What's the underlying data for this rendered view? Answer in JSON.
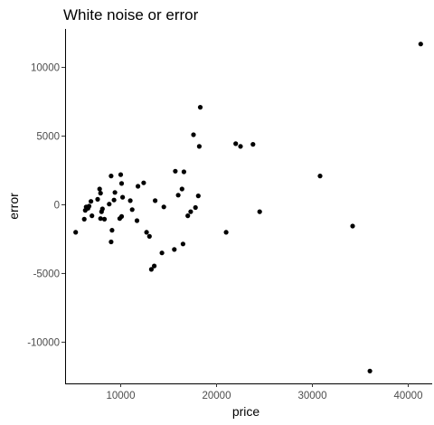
{
  "chart_data": {
    "type": "scatter",
    "title": "White noise or error",
    "xlabel": "price",
    "ylabel": "error",
    "xlim": [
      4200,
      42500
    ],
    "ylim": [
      -13000,
      12800
    ],
    "xticks": [
      10000,
      20000,
      30000,
      40000
    ],
    "xtick_labels": [
      "10000",
      "20000",
      "30000",
      "40000"
    ],
    "yticks": [
      -10000,
      -5000,
      0,
      5000,
      10000
    ],
    "ytick_labels": [
      "-10000",
      "-5000",
      "0",
      "5000",
      "10000"
    ],
    "grid": false,
    "point_color": "#000000",
    "points": [
      {
        "x": 5300,
        "y": -2000
      },
      {
        "x": 6200,
        "y": -1050
      },
      {
        "x": 6300,
        "y": -400
      },
      {
        "x": 6400,
        "y": -150
      },
      {
        "x": 6600,
        "y": -250
      },
      {
        "x": 6700,
        "y": -100
      },
      {
        "x": 6900,
        "y": 250
      },
      {
        "x": 7000,
        "y": -800
      },
      {
        "x": 7600,
        "y": 400
      },
      {
        "x": 7800,
        "y": 1150
      },
      {
        "x": 7900,
        "y": 850
      },
      {
        "x": 7900,
        "y": -1000
      },
      {
        "x": 8000,
        "y": -500
      },
      {
        "x": 8100,
        "y": -300
      },
      {
        "x": 8300,
        "y": -1050
      },
      {
        "x": 8800,
        "y": 50
      },
      {
        "x": 9000,
        "y": 2100
      },
      {
        "x": 9000,
        "y": -2700
      },
      {
        "x": 9100,
        "y": -1850
      },
      {
        "x": 9300,
        "y": 350
      },
      {
        "x": 9400,
        "y": 900
      },
      {
        "x": 9900,
        "y": -1000
      },
      {
        "x": 10000,
        "y": 2200
      },
      {
        "x": 10100,
        "y": 1550
      },
      {
        "x": 10100,
        "y": -850
      },
      {
        "x": 10200,
        "y": 550
      },
      {
        "x": 11000,
        "y": 300
      },
      {
        "x": 11200,
        "y": -350
      },
      {
        "x": 11700,
        "y": -1150
      },
      {
        "x": 11800,
        "y": 1350
      },
      {
        "x": 12400,
        "y": 1600
      },
      {
        "x": 12700,
        "y": -2000
      },
      {
        "x": 13000,
        "y": -2300
      },
      {
        "x": 13200,
        "y": -4700
      },
      {
        "x": 13500,
        "y": -4450
      },
      {
        "x": 13600,
        "y": 300
      },
      {
        "x": 14300,
        "y": -3500
      },
      {
        "x": 14500,
        "y": -150
      },
      {
        "x": 15600,
        "y": -3250
      },
      {
        "x": 15700,
        "y": 2450
      },
      {
        "x": 16000,
        "y": 700
      },
      {
        "x": 16400,
        "y": 1150
      },
      {
        "x": 16500,
        "y": -2850
      },
      {
        "x": 16600,
        "y": 2400
      },
      {
        "x": 17000,
        "y": -800
      },
      {
        "x": 17300,
        "y": -500
      },
      {
        "x": 17600,
        "y": 5100
      },
      {
        "x": 17800,
        "y": -200
      },
      {
        "x": 18100,
        "y": 650
      },
      {
        "x": 18200,
        "y": 4250
      },
      {
        "x": 18300,
        "y": 7100
      },
      {
        "x": 21000,
        "y": -2000
      },
      {
        "x": 22000,
        "y": 4450
      },
      {
        "x": 22500,
        "y": 4250
      },
      {
        "x": 23800,
        "y": 4400
      },
      {
        "x": 24500,
        "y": -500
      },
      {
        "x": 30800,
        "y": 2100
      },
      {
        "x": 34200,
        "y": -1550
      },
      {
        "x": 36000,
        "y": -12100
      },
      {
        "x": 41300,
        "y": 11700
      }
    ]
  }
}
